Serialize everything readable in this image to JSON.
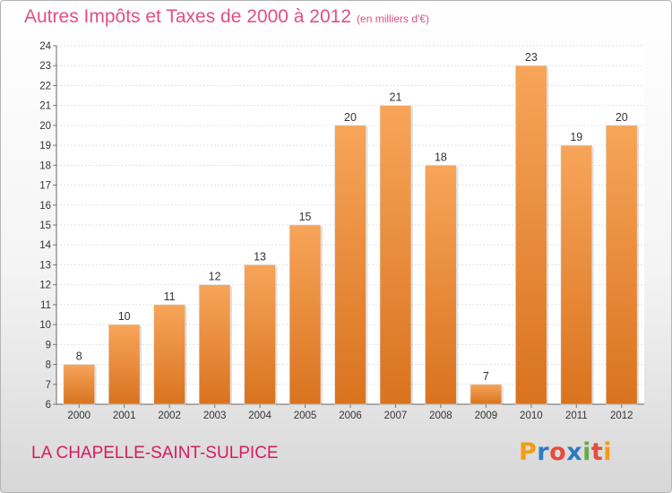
{
  "header": {
    "title": "Autres Impôts et Taxes de 2000 à 2012",
    "unit": "(en milliers d'€)"
  },
  "footer": {
    "commune": "LA CHAPELLE-SAINT-SULPICE",
    "logo": "Proxiti"
  },
  "colors": {
    "title": "#e2507d",
    "commune": "#d81b60",
    "bar_top": "#f7a55a",
    "bar_bottom": "#d9731f",
    "logo_letters": [
      "#f39c12",
      "#2e7bbf",
      "#e74c3c",
      "#2e7bbf",
      "#6aa84f",
      "#e74c3c",
      "#f39c12"
    ]
  },
  "chart_data": {
    "type": "bar",
    "categories": [
      "2000",
      "2001",
      "2002",
      "2003",
      "2004",
      "2005",
      "2006",
      "2007",
      "2008",
      "2009",
      "2010",
      "2011",
      "2012"
    ],
    "values": [
      8,
      10,
      11,
      12,
      13,
      15,
      20,
      21,
      18,
      7,
      23,
      19,
      20
    ],
    "title": "Autres Impôts et Taxes de 2000 à 2012",
    "ylim": [
      6,
      24
    ],
    "yticks": [
      6,
      7,
      8,
      9,
      10,
      11,
      12,
      13,
      14,
      15,
      16,
      17,
      18,
      19,
      20,
      21,
      22,
      23,
      24
    ],
    "grid": true
  }
}
